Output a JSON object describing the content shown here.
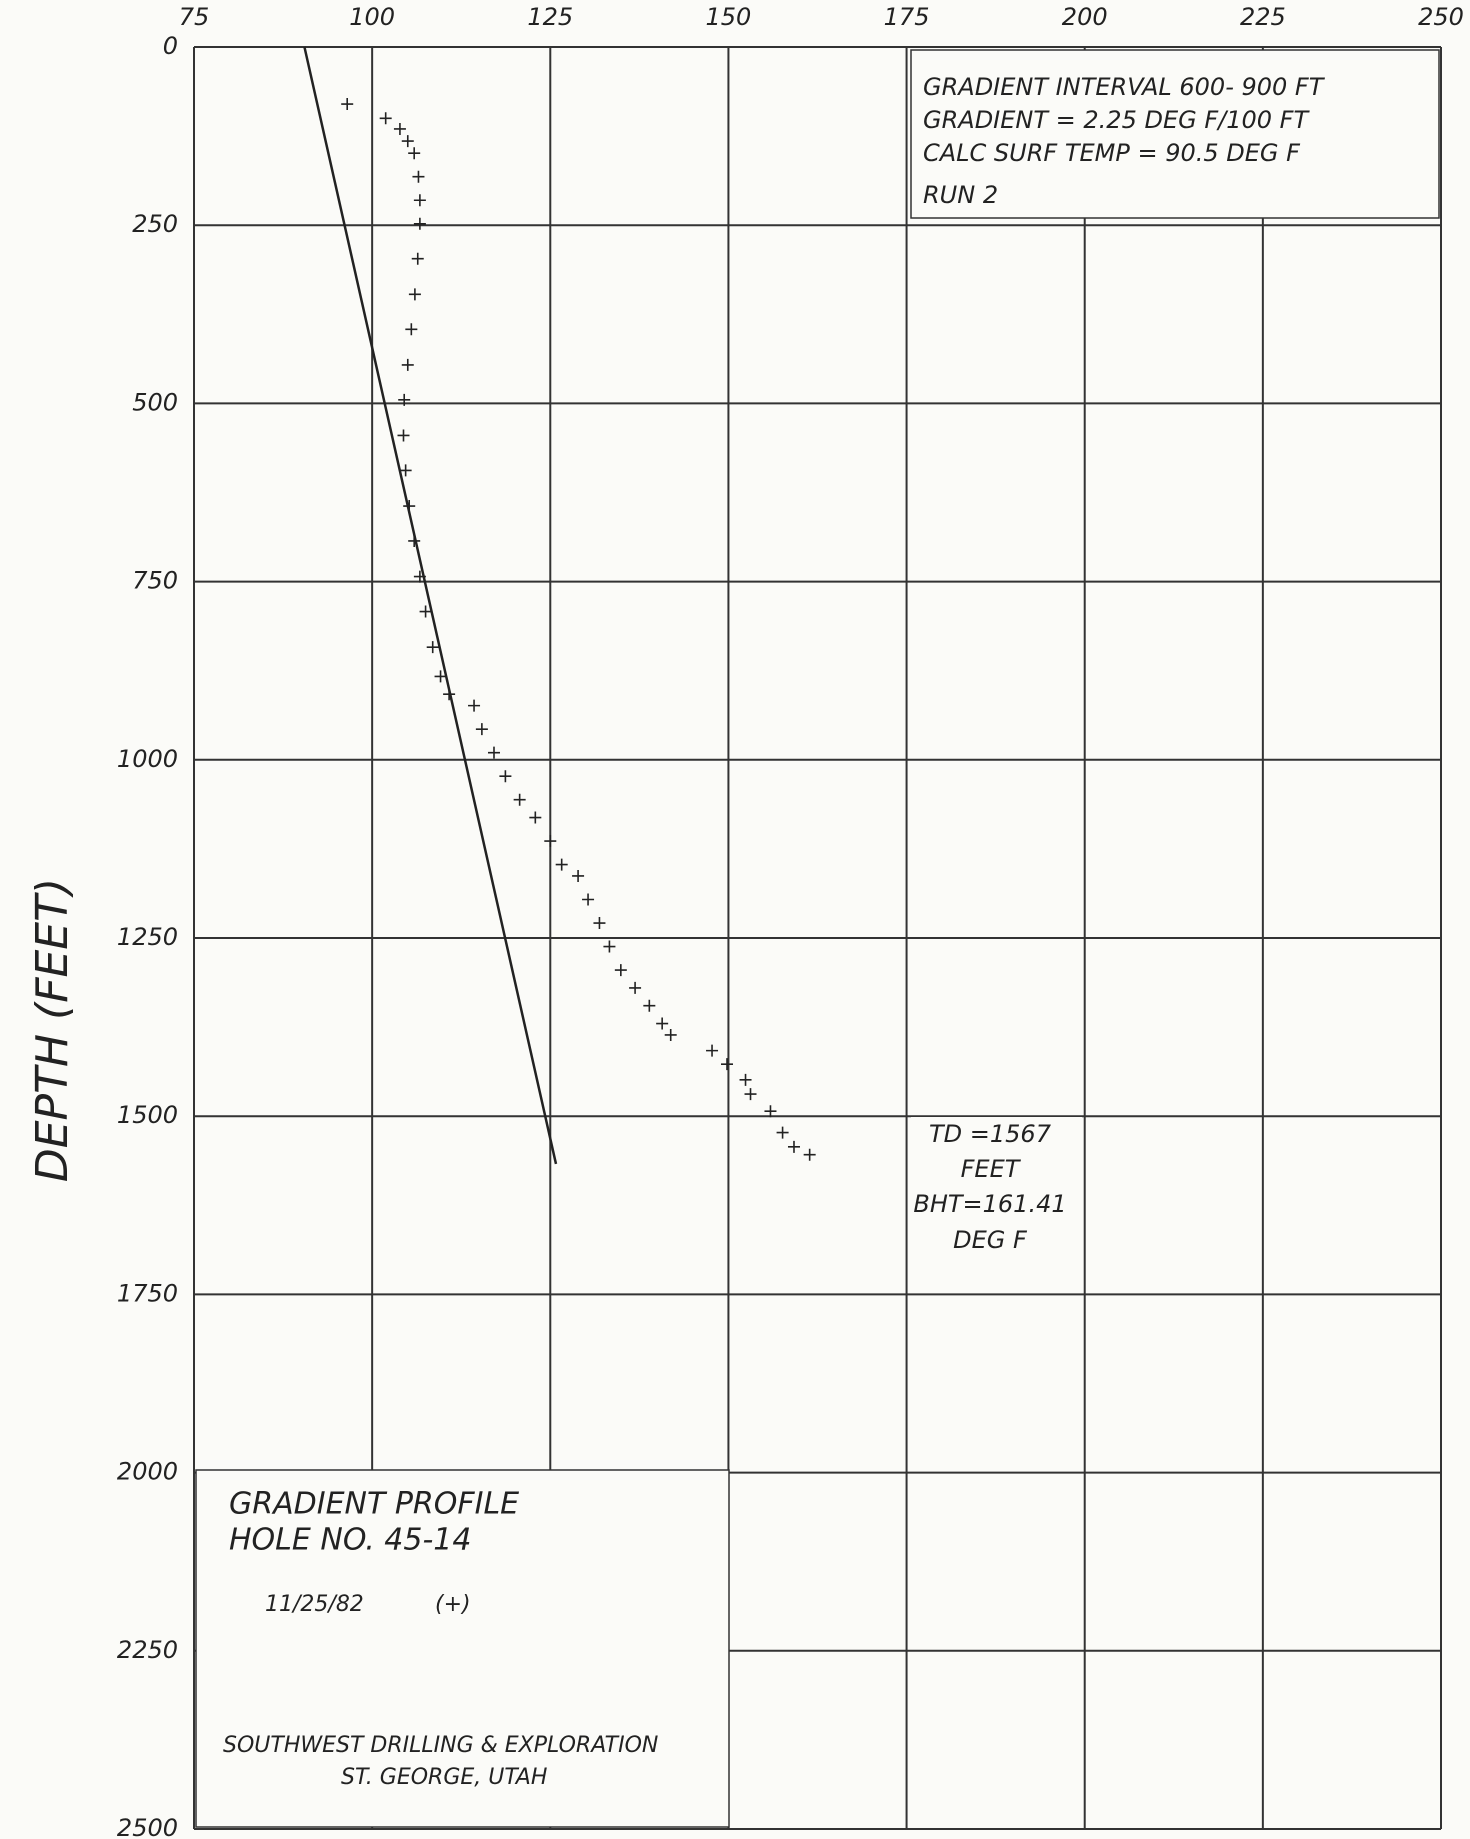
{
  "chart_data": {
    "type": "scatter",
    "ylabel": "DEPTH (FEET)",
    "xlim": [
      75,
      250
    ],
    "xticks": [
      75,
      100,
      125,
      150,
      175,
      200,
      225,
      250
    ],
    "ylim": [
      0,
      2500
    ],
    "yticks": [
      0,
      250,
      500,
      750,
      1000,
      1250,
      1500,
      1750,
      2000,
      2250,
      2500
    ],
    "y_inverted": true,
    "grid": true,
    "color": "#222222",
    "points": {
      "x": [
        96.5,
        101.9,
        103.9,
        105,
        105.9,
        106.5,
        106.7,
        106.7,
        106.4,
        106,
        105.5,
        105,
        104.5,
        104.4,
        104.7,
        105.2,
        105.9,
        106.7,
        107.5,
        108.5,
        109.6,
        110.8,
        114.3,
        115.4,
        117.1,
        118.7,
        120.7,
        122.9,
        125,
        126.6,
        128.9,
        130.3,
        131.9,
        133.3,
        134.9,
        136.9,
        138.9,
        140.7,
        141.9,
        147.7,
        149.8,
        152.4,
        153.1,
        155.9,
        157.6,
        159.2,
        161.4
      ],
      "values": [
        80,
        100,
        115,
        132,
        149,
        182,
        215,
        248,
        297,
        347,
        396,
        446,
        495,
        545,
        594,
        644,
        693,
        743,
        792,
        842,
        883,
        908,
        924,
        957,
        990,
        1023,
        1056,
        1081,
        1114,
        1147,
        1163,
        1196,
        1229,
        1262,
        1295,
        1320,
        1345,
        1370,
        1386,
        1408,
        1427,
        1449,
        1469,
        1493,
        1523,
        1543,
        1554
      ]
    },
    "gradient_line": {
      "x": [
        90.5,
        125.8
      ],
      "values": [
        0,
        1567
      ]
    },
    "gradient_box": [
      "GRADIENT INTERVAL  600- 900 FT",
      "GRADIENT =  2.25 DEG F/100 FT",
      "CALC SURF TEMP = 90.5 DEG F",
      "RUN 2"
    ],
    "td_box": [
      "TD =1567",
      "FEET",
      "BHT=161.41",
      "DEG F"
    ],
    "title_box": {
      "title": "GRADIENT PROFILE",
      "hole": "HOLE NO. 45-14",
      "date": "11/25/82",
      "symbol": "(+)",
      "company": "SOUTHWEST DRILLING & EXPLORATION",
      "location": "ST. GEORGE, UTAH"
    }
  }
}
